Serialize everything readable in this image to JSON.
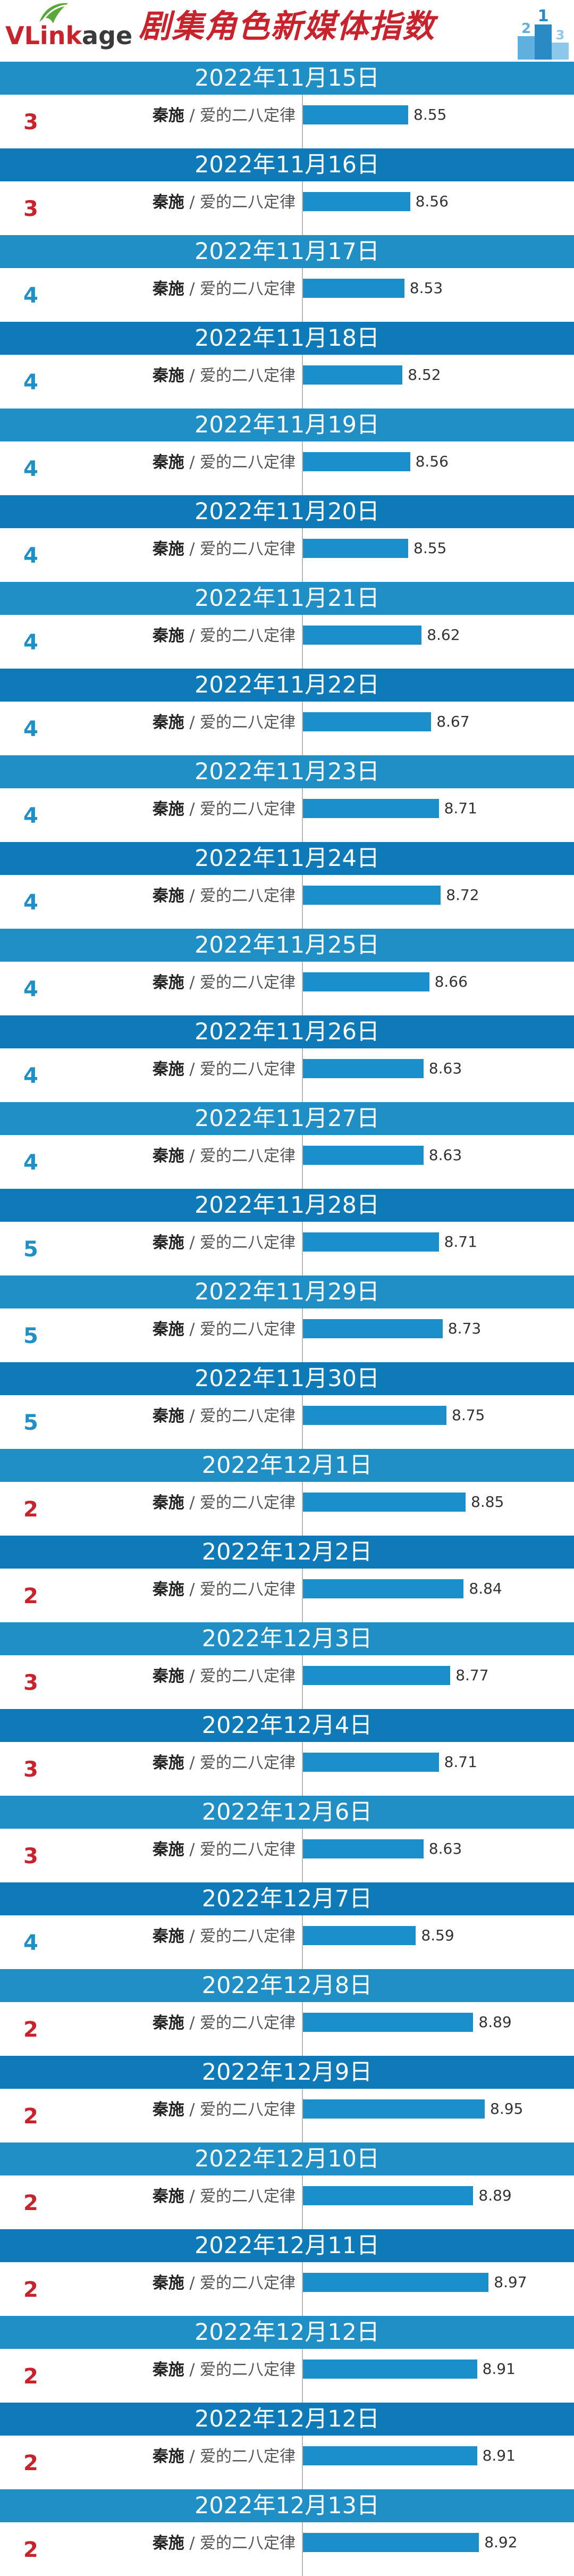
{
  "brand": {
    "logo_main": "VL",
    "logo_ink": "ink",
    "logo_age": "age",
    "title": "剧集角色新媒体指数"
  },
  "colors": {
    "date_bar": "#1f8fc6",
    "bar": "#1a8fca",
    "rank_red": "#c8232c",
    "rank_blue": "#1f8fc6",
    "title_red": "#c8232c"
  },
  "chart_data": {
    "type": "bar",
    "orientation": "horizontal",
    "title": "剧集角色新媒体指数",
    "xlabel": "",
    "ylabel": "",
    "xlim": [
      8.0,
      9.0
    ],
    "rows": [
      {
        "date": "2022年11月15日",
        "rank": "3",
        "character": "秦施",
        "show": "爱的二八定律",
        "value": 8.55
      },
      {
        "date": "2022年11月16日",
        "rank": "3",
        "character": "秦施",
        "show": "爱的二八定律",
        "value": 8.56
      },
      {
        "date": "2022年11月17日",
        "rank": "4",
        "character": "秦施",
        "show": "爱的二八定律",
        "value": 8.53
      },
      {
        "date": "2022年11月18日",
        "rank": "4",
        "character": "秦施",
        "show": "爱的二八定律",
        "value": 8.52
      },
      {
        "date": "2022年11月19日",
        "rank": "4",
        "character": "秦施",
        "show": "爱的二八定律",
        "value": 8.56
      },
      {
        "date": "2022年11月20日",
        "rank": "4",
        "character": "秦施",
        "show": "爱的二八定律",
        "value": 8.55
      },
      {
        "date": "2022年11月21日",
        "rank": "4",
        "character": "秦施",
        "show": "爱的二八定律",
        "value": 8.62
      },
      {
        "date": "2022年11月22日",
        "rank": "4",
        "character": "秦施",
        "show": "爱的二八定律",
        "value": 8.67
      },
      {
        "date": "2022年11月23日",
        "rank": "4",
        "character": "秦施",
        "show": "爱的二八定律",
        "value": 8.71
      },
      {
        "date": "2022年11月24日",
        "rank": "4",
        "character": "秦施",
        "show": "爱的二八定律",
        "value": 8.72
      },
      {
        "date": "2022年11月25日",
        "rank": "4",
        "character": "秦施",
        "show": "爱的二八定律",
        "value": 8.66
      },
      {
        "date": "2022年11月26日",
        "rank": "4",
        "character": "秦施",
        "show": "爱的二八定律",
        "value": 8.63
      },
      {
        "date": "2022年11月27日",
        "rank": "4",
        "character": "秦施",
        "show": "爱的二八定律",
        "value": 8.63
      },
      {
        "date": "2022年11月28日",
        "rank": "5",
        "character": "秦施",
        "show": "爱的二八定律",
        "value": 8.71
      },
      {
        "date": "2022年11月29日",
        "rank": "5",
        "character": "秦施",
        "show": "爱的二八定律",
        "value": 8.73
      },
      {
        "date": "2022年11月30日",
        "rank": "5",
        "character": "秦施",
        "show": "爱的二八定律",
        "value": 8.75
      },
      {
        "date": "2022年12月1日",
        "rank": "2",
        "character": "秦施",
        "show": "爱的二八定律",
        "value": 8.85
      },
      {
        "date": "2022年12月2日",
        "rank": "2",
        "character": "秦施",
        "show": "爱的二八定律",
        "value": 8.84
      },
      {
        "date": "2022年12月3日",
        "rank": "3",
        "character": "秦施",
        "show": "爱的二八定律",
        "value": 8.77
      },
      {
        "date": "2022年12月4日",
        "rank": "3",
        "character": "秦施",
        "show": "爱的二八定律",
        "value": 8.71
      },
      {
        "date": "2022年12月6日",
        "rank": "3",
        "character": "秦施",
        "show": "爱的二八定律",
        "value": 8.63
      },
      {
        "date": "2022年12月7日",
        "rank": "4",
        "character": "秦施",
        "show": "爱的二八定律",
        "value": 8.59
      },
      {
        "date": "2022年12月8日",
        "rank": "2",
        "character": "秦施",
        "show": "爱的二八定律",
        "value": 8.89
      },
      {
        "date": "2022年12月9日",
        "rank": "2",
        "character": "秦施",
        "show": "爱的二八定律",
        "value": 8.95
      },
      {
        "date": "2022年12月10日",
        "rank": "2",
        "character": "秦施",
        "show": "爱的二八定律",
        "value": 8.89
      },
      {
        "date": "2022年12月11日",
        "rank": "2",
        "character": "秦施",
        "show": "爱的二八定律",
        "value": 8.97
      },
      {
        "date": "2022年12月12日",
        "rank": "2",
        "character": "秦施",
        "show": "爱的二八定律",
        "value": 8.91
      },
      {
        "date": "2022年12月12日",
        "rank": "2",
        "character": "秦施",
        "show": "爱的二八定律",
        "value": 8.91
      },
      {
        "date": "2022年12月13日",
        "rank": "2",
        "character": "秦施",
        "show": "爱的二八定律",
        "value": 8.92
      }
    ]
  }
}
